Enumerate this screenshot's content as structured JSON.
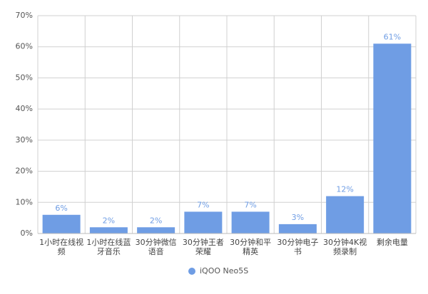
{
  "chart_data": {
    "type": "bar",
    "categories": [
      "1小时在线视频",
      "1小时在线蓝牙音乐",
      "30分钟微信语音",
      "30分钟王者荣耀",
      "30分钟和平精英",
      "30分钟电子书",
      "30分钟4K视频录制",
      "剩余电量"
    ],
    "series": [
      {
        "name": "iQOO Neo5S",
        "color": "#6f9de4",
        "values": [
          6,
          2,
          2,
          7,
          7,
          3,
          12,
          61
        ],
        "value_labels": [
          "6%",
          "2%",
          "2%",
          "7%",
          "7%",
          "3%",
          "12%",
          "61%"
        ]
      }
    ],
    "ylim": [
      0,
      70
    ],
    "yticks": [
      {
        "value": 0,
        "label": "0%"
      },
      {
        "value": 10,
        "label": "10%"
      },
      {
        "value": 20,
        "label": "20%"
      },
      {
        "value": 30,
        "label": "30%"
      },
      {
        "value": 40,
        "label": "40%"
      },
      {
        "value": 50,
        "label": "50%"
      },
      {
        "value": 60,
        "label": "60%"
      },
      {
        "value": 70,
        "label": "70%"
      }
    ],
    "grid": true
  }
}
